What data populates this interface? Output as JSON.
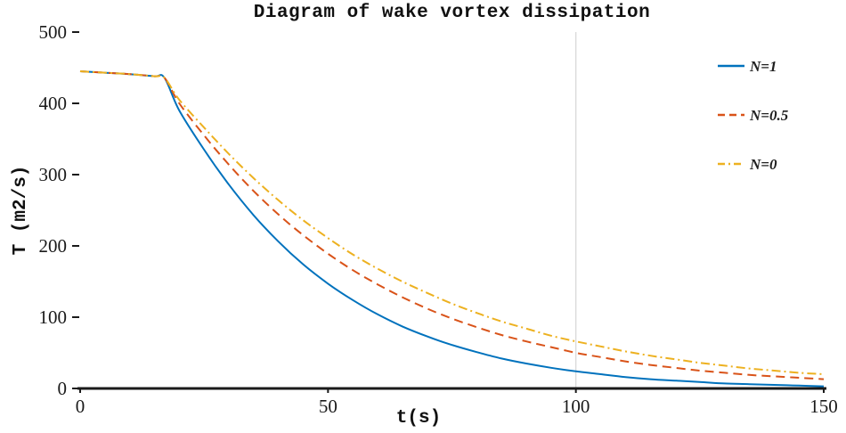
{
  "chart_data": {
    "type": "line",
    "title": "Diagram of wake vortex dissipation",
    "xlabel": "t(s)",
    "ylabel": "T (m2/s)",
    "xlim": [
      0,
      150
    ],
    "ylim": [
      0,
      500
    ],
    "xticks": [
      0,
      50,
      100,
      150
    ],
    "yticks": [
      0,
      100,
      200,
      300,
      400,
      500
    ],
    "gridlines_x": [
      100
    ],
    "grid": "vertical-only",
    "legend_position": "top-right",
    "colors": {
      "axis": "#1a1a1a",
      "tick_label": "#1a1a1a",
      "gridline": "#d9d9d9",
      "series_blue": "#0072BD",
      "series_red": "#D95319",
      "series_yellow": "#EDB120"
    },
    "x": [
      0,
      5,
      10,
      15,
      17,
      20,
      25,
      30,
      35,
      40,
      45,
      50,
      55,
      60,
      65,
      70,
      75,
      80,
      85,
      90,
      95,
      100,
      105,
      110,
      115,
      120,
      125,
      130,
      135,
      140,
      145,
      150
    ],
    "series": [
      {
        "name": "N=1",
        "color": "#0072BD",
        "dash": "solid",
        "values": [
          445,
          443,
          441,
          438,
          436,
          390,
          335,
          286,
          243,
          206,
          174,
          147,
          124,
          104,
          87,
          73,
          61,
          51,
          42,
          35,
          29,
          24,
          20,
          16,
          13,
          11,
          9,
          7,
          6,
          5,
          4,
          3
        ]
      },
      {
        "name": "N=0.5",
        "color": "#D95319",
        "dash": "dashed",
        "values": [
          445,
          443,
          441,
          438,
          436,
          400,
          355,
          314,
          277,
          244,
          215,
          189,
          166,
          146,
          128,
          112,
          98,
          86,
          75,
          66,
          58,
          50,
          44,
          38,
          33,
          29,
          25,
          22,
          19,
          17,
          15,
          13
        ]
      },
      {
        "name": "N=0",
        "color": "#EDB120",
        "dash": "dashdot",
        "values": [
          445,
          443,
          441,
          438,
          436,
          405,
          366,
          329,
          295,
          264,
          236,
          211,
          188,
          168,
          150,
          134,
          119,
          106,
          94,
          84,
          74,
          66,
          59,
          52,
          46,
          41,
          36,
          32,
          28,
          25,
          22,
          20
        ]
      }
    ]
  }
}
